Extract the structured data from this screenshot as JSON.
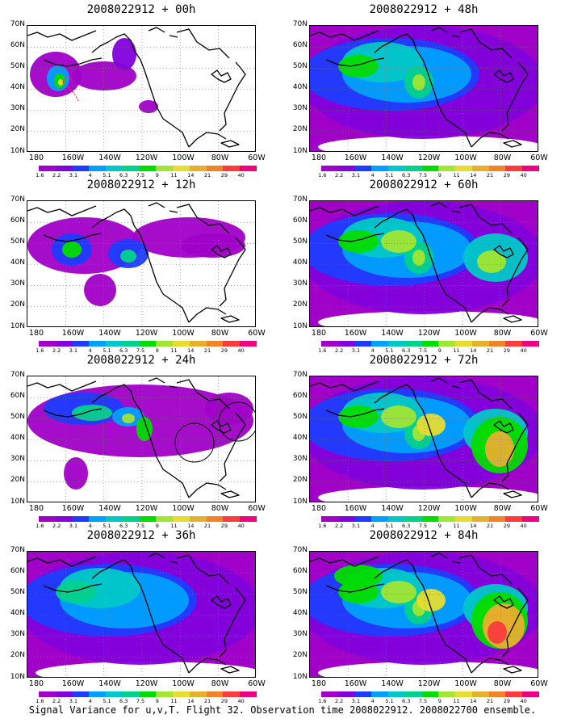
{
  "panels": [
    {
      "title": "2008022912 + 00h",
      "level": 0
    },
    {
      "title": "2008022912 + 48h",
      "level": 4
    },
    {
      "title": "2008022912 + 12h",
      "level": 1
    },
    {
      "title": "2008022912 + 60h",
      "level": 5
    },
    {
      "title": "2008022912 + 24h",
      "level": 2
    },
    {
      "title": "2008022912 + 72h",
      "level": 6
    },
    {
      "title": "2008022912 + 36h",
      "level": 3
    },
    {
      "title": "2008022912 + 84h",
      "level": 7
    }
  ],
  "lat_labels": [
    "70N",
    "60N",
    "50N",
    "40N",
    "30N",
    "20N",
    "10N"
  ],
  "lon_labels": [
    "180",
    "160W",
    "140W",
    "120W",
    "100W",
    "80W",
    "60W"
  ],
  "colorbar": {
    "colors": [
      "#a000c8",
      "#8200dc",
      "#1e3cff",
      "#00a0ff",
      "#00c8c8",
      "#00d28c",
      "#00dc00",
      "#a0e632",
      "#e6dc32",
      "#e6af2d",
      "#f08228",
      "#fa3c3c",
      "#f00082"
    ],
    "labels": [
      "1.6",
      "2.2",
      "3.1",
      "4",
      "5.1",
      "6.3",
      "7.5",
      "9",
      "11",
      "14",
      "21",
      "29",
      "40"
    ]
  },
  "footer": "Signal Variance for u,v,T. Flight 32. Observation time 2008022912. 2008022700 ensemble."
}
